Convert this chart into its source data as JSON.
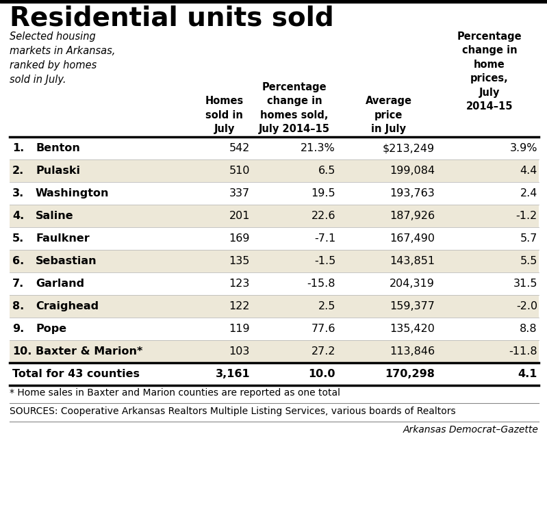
{
  "title": "Residential units sold",
  "subtitle": "Selected housing\nmarkets in Arkansas,\nranked by homes\nsold in July.",
  "col_headers": [
    "Homes\nsold in\nJuly",
    "Percentage\nchange in\nhomes sold,\nJuly 2014–15",
    "Average\nprice\nin July",
    "Percentage\nchange in\nhome\nprices,\nJuly\n2014–15"
  ],
  "rows": [
    {
      "rank": "1.",
      "name": "Benton",
      "homes": "542",
      "pct_change": "21.3%",
      "avg_price": "$213,249",
      "price_change": "3.9%",
      "shaded": false
    },
    {
      "rank": "2.",
      "name": "Pulaski",
      "homes": "510",
      "pct_change": "6.5",
      "avg_price": "199,084",
      "price_change": "4.4",
      "shaded": true
    },
    {
      "rank": "3.",
      "name": "Washington",
      "homes": "337",
      "pct_change": "19.5",
      "avg_price": "193,763",
      "price_change": "2.4",
      "shaded": false
    },
    {
      "rank": "4.",
      "name": "Saline",
      "homes": "201",
      "pct_change": "22.6",
      "avg_price": "187,926",
      "price_change": "-1.2",
      "shaded": true
    },
    {
      "rank": "5.",
      "name": "Faulkner",
      "homes": "169",
      "pct_change": "-7.1",
      "avg_price": "167,490",
      "price_change": "5.7",
      "shaded": false
    },
    {
      "rank": "6.",
      "name": "Sebastian",
      "homes": "135",
      "pct_change": "-1.5",
      "avg_price": "143,851",
      "price_change": "5.5",
      "shaded": true
    },
    {
      "rank": "7.",
      "name": "Garland",
      "homes": "123",
      "pct_change": "-15.8",
      "avg_price": "204,319",
      "price_change": "31.5",
      "shaded": false
    },
    {
      "rank": "8.",
      "name": "Craighead",
      "homes": "122",
      "pct_change": "2.5",
      "avg_price": "159,377",
      "price_change": "-2.0",
      "shaded": true
    },
    {
      "rank": "9.",
      "name": "Pope",
      "homes": "119",
      "pct_change": "77.6",
      "avg_price": "135,420",
      "price_change": "8.8",
      "shaded": false
    },
    {
      "rank": "10.",
      "name": "Baxter & Marion*",
      "homes": "103",
      "pct_change": "27.2",
      "avg_price": "113,846",
      "price_change": "-11.8",
      "shaded": true
    }
  ],
  "total_row": {
    "label": "Total for 43 counties",
    "homes": "3,161",
    "pct_change": "10.0",
    "avg_price": "170,298",
    "price_change": "4.1"
  },
  "footnote1": "* Home sales in Baxter and Marion counties are reported as one total",
  "footnote2": "SOURCES: Cooperative Arkansas Realtors Multiple Listing Services, various boards of Realtors",
  "credit": "Arkansas Democrat–Gazette",
  "bg_color": "#ffffff",
  "shaded_color": "#ede8d8",
  "text_color": "#000000",
  "title_fontsize": 28,
  "subtitle_fontsize": 10.5,
  "header_fontsize": 10.5,
  "data_fontsize": 11.5,
  "footnote_fontsize": 10,
  "credit_fontsize": 10
}
